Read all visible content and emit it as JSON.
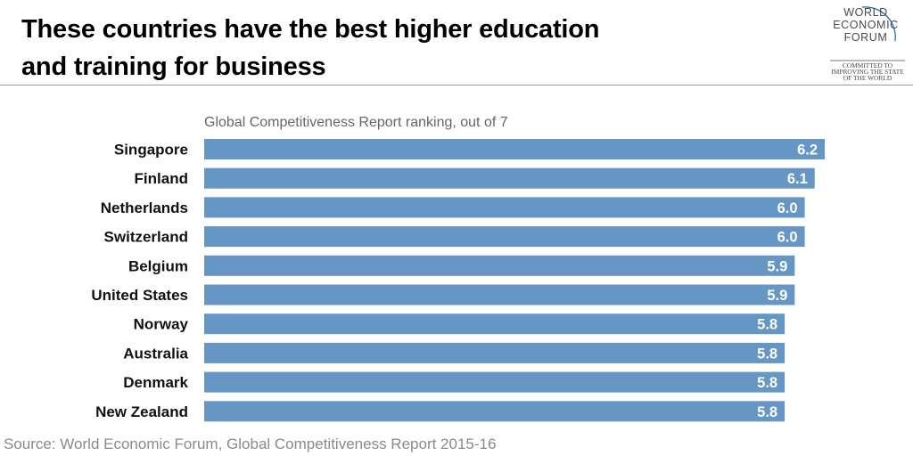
{
  "header": {
    "title_line1": "These countries have the best higher education",
    "title_line2": "and training for business"
  },
  "logo": {
    "name": "world-economic-forum-logo",
    "words": [
      "WORLD",
      "ECONOMIC",
      "FORUM"
    ],
    "tagline": [
      "COMMITTED TO",
      "IMPROVING THE STATE",
      "OF THE WORLD"
    ]
  },
  "colors": {
    "bar": "#6596c4",
    "logo_arc": "#1a6fb3"
  },
  "source": "Source: World Economic Forum, Global Competitiveness Report 2015-16",
  "chart_data": {
    "type": "bar",
    "orientation": "horizontal",
    "subtitle": "Global Competitiveness Report ranking, out of 7",
    "categories": [
      "Singapore",
      "Finland",
      "Netherlands",
      "Switzerland",
      "Belgium",
      "United States",
      "Norway",
      "Australia",
      "Denmark",
      "New Zealand"
    ],
    "values": [
      6.2,
      6.1,
      6.0,
      6.0,
      5.9,
      5.9,
      5.8,
      5.8,
      5.8,
      5.8
    ],
    "value_labels": [
      "6.2",
      "6.1",
      "6.0",
      "6.0",
      "5.9",
      "5.9",
      "5.8",
      "5.8",
      "5.8",
      "5.8"
    ],
    "xlim": [
      0,
      6.2
    ],
    "grid": false,
    "legend": "none"
  }
}
